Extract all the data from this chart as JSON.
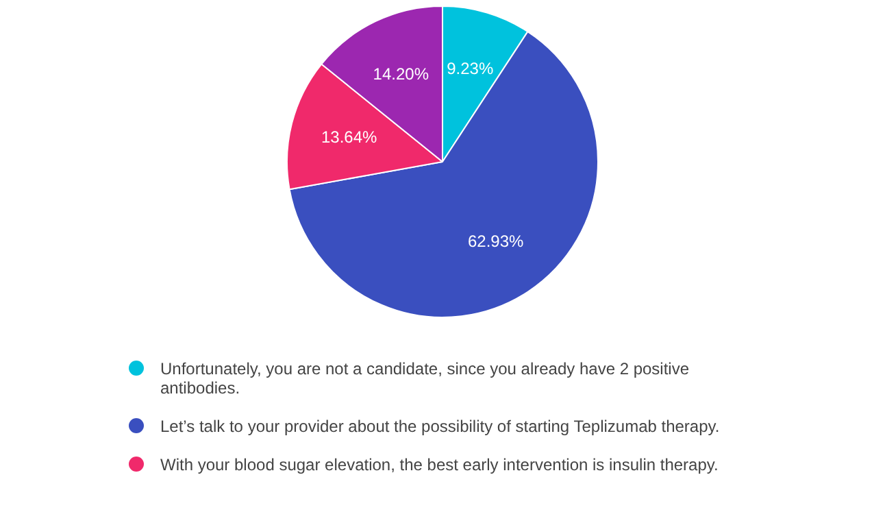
{
  "chart_data": {
    "type": "pie",
    "categories": [
      "Unfortunately, you are not a candidate, since you already have 2 positive antibodies.",
      "Let’s talk to your provider about the possibility of starting Teplizumab therapy.",
      "With your blood sugar elevation, the best early intervention is insulin therapy.",
      null
    ],
    "values": [
      9.23,
      62.93,
      13.64,
      14.2
    ],
    "colors": [
      "#00c2dd",
      "#3a4fbf",
      "#f0296b",
      "#9c27b0"
    ],
    "value_labels": [
      "9.23%",
      "62.93%",
      "13.64%",
      "14.20%"
    ],
    "legend": "bottom"
  }
}
